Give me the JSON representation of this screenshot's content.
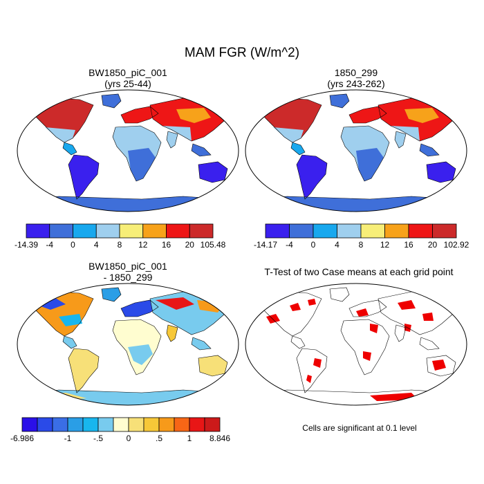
{
  "chart_data": {
    "type": "heatmap",
    "title": "MAM FGR (W/m^2)",
    "panels": [
      {
        "id": "case1",
        "title_line1": "BW1850_piC_001",
        "title_line2": "(yrs 25-44)",
        "colorbar": {
          "colors": [
            "#3a20ee",
            "#3f6fd9",
            "#18a8ee",
            "#9fcfee",
            "#f7ee78",
            "#f7a21a",
            "#ee1616",
            "#cc2a2a"
          ],
          "tick_labels": [
            "-14.39",
            "-4",
            "0",
            "4",
            "8",
            "12",
            "16",
            "20",
            "105.48"
          ]
        }
      },
      {
        "id": "case2",
        "title_line1": "1850_299",
        "title_line2": "(yrs 243-262)",
        "colorbar": {
          "colors": [
            "#3a20ee",
            "#3f6fd9",
            "#18a8ee",
            "#9fcfee",
            "#f7ee78",
            "#f7a21a",
            "#ee1616",
            "#cc2a2a"
          ],
          "tick_labels": [
            "-14.17",
            "-4",
            "0",
            "4",
            "8",
            "12",
            "16",
            "20",
            "102.92"
          ]
        }
      },
      {
        "id": "diff",
        "title_line1": "BW1850_piC_001",
        "title_line2": "- 1850_299",
        "colorbar": {
          "colors": [
            "#2a10e8",
            "#2a4ae8",
            "#3a6ee6",
            "#2a9ee6",
            "#18b6ee",
            "#78cbee",
            "#fffdd0",
            "#f7e078",
            "#f7c838",
            "#f79a1a",
            "#f76616",
            "#e81616",
            "#cc1a1a"
          ],
          "tick_labels": [
            "-6.986",
            "",
            "",
            "-1",
            "",
            "-.5",
            "",
            "0",
            "",
            ".5",
            "",
            "1",
            "",
            "8.846"
          ]
        }
      },
      {
        "id": "ttest",
        "title_line1": "T-Test of two Case means at each grid point",
        "footnote": "Cells are significant at 0.1 level"
      }
    ]
  }
}
